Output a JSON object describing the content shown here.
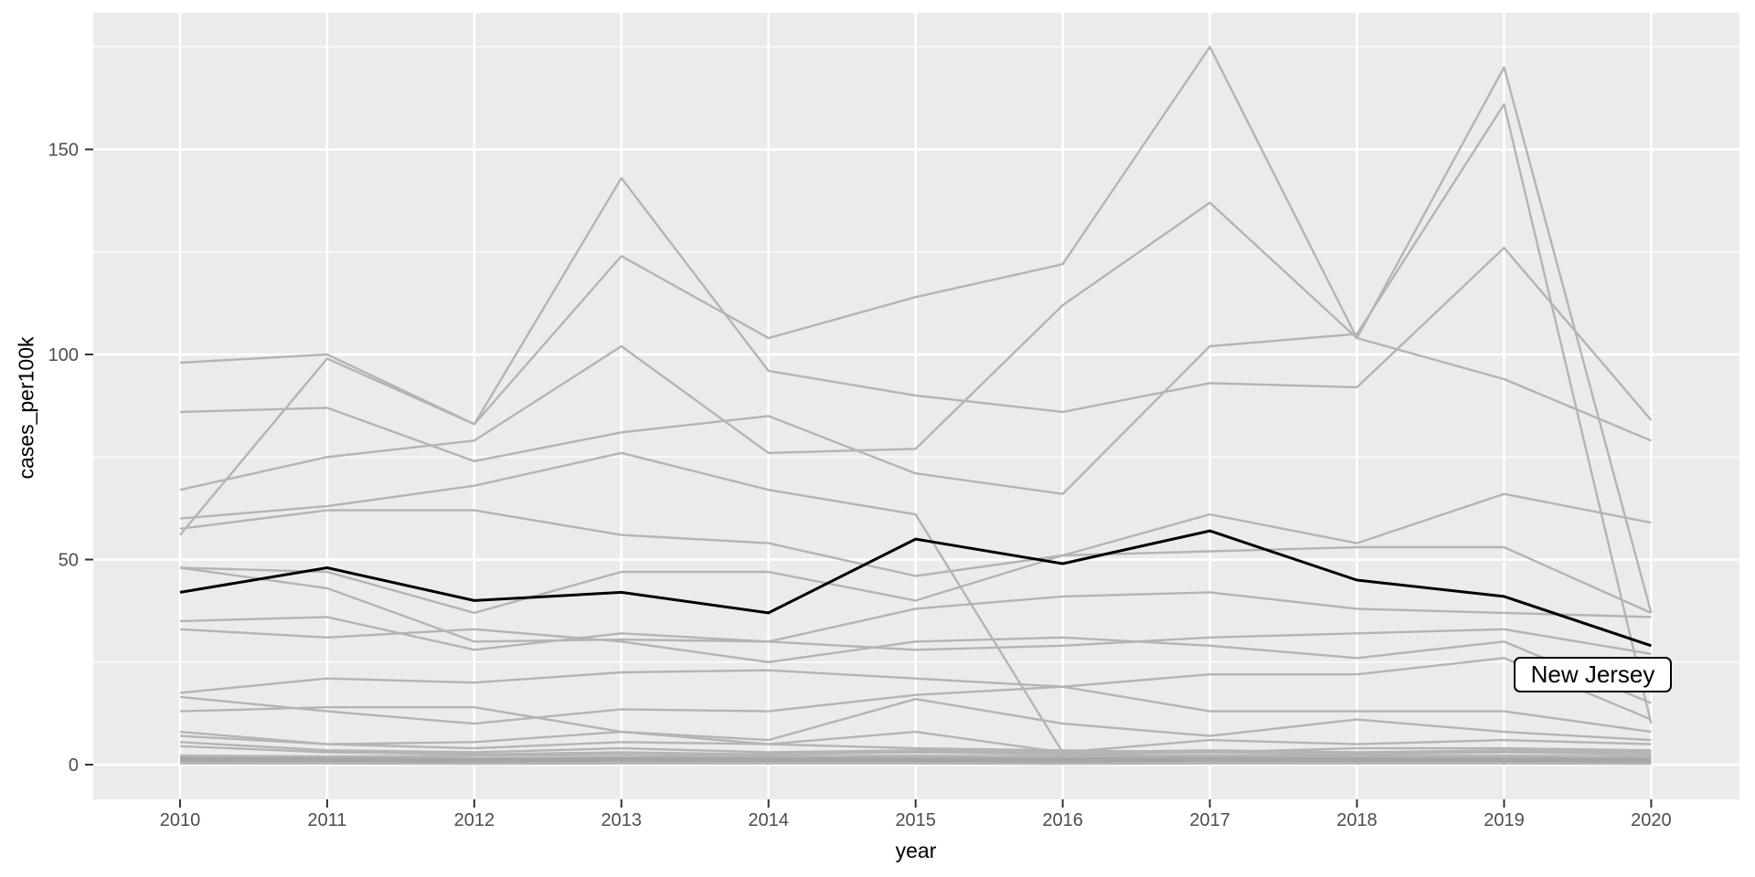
{
  "chart_data": {
    "type": "line",
    "title": "",
    "xlabel": "year",
    "ylabel": "cases_per100k",
    "x": [
      2010,
      2011,
      2012,
      2013,
      2014,
      2015,
      2016,
      2017,
      2018,
      2019,
      2020
    ],
    "x_tick_labels": [
      "2010",
      "2011",
      "2012",
      "2013",
      "2014",
      "2015",
      "2016",
      "2017",
      "2018",
      "2019",
      "2020"
    ],
    "y_tick_labels": [
      "0",
      "50",
      "100",
      "150"
    ],
    "y_tick_values": [
      0,
      50,
      100,
      150
    ],
    "y_minor_values": [
      25,
      75,
      125,
      175
    ],
    "xlim": [
      2009.41,
      2020.6
    ],
    "ylim": [
      -8.46,
      183.3
    ],
    "grid": "white major gridlines on gray panel, minor horizontal gridlines",
    "legend": "none",
    "highlight": {
      "name": "New Jersey",
      "label": "New Jersey",
      "color": "#000000",
      "values": [
        42,
        48,
        40,
        42,
        37,
        55,
        49,
        57,
        45,
        41,
        29
      ]
    },
    "series": [
      {
        "name": "gray-line-01",
        "values": [
          56,
          99,
          83,
          143,
          96,
          90,
          86,
          93,
          92,
          126,
          84
        ]
      },
      {
        "name": "gray-line-02",
        "values": [
          98,
          100,
          83,
          124,
          104,
          114,
          122,
          175,
          104,
          170,
          37
        ]
      },
      {
        "name": "gray-line-03",
        "values": [
          86,
          87,
          74,
          81,
          85,
          71,
          66,
          102,
          105,
          161,
          10
        ]
      },
      {
        "name": "gray-line-04",
        "values": [
          67,
          75,
          79,
          102,
          76,
          77,
          112,
          137,
          104,
          94,
          79
        ]
      },
      {
        "name": "gray-line-05",
        "values": [
          60,
          63,
          68,
          76,
          67,
          61,
          3,
          1.5,
          1.2,
          1.5,
          1.2
        ]
      },
      {
        "name": "gray-line-06",
        "values": [
          57.5,
          62,
          62,
          56,
          54,
          46,
          51,
          61,
          54,
          66,
          59
        ]
      },
      {
        "name": "gray-line-07",
        "values": [
          48,
          43,
          30,
          30.5,
          30,
          28,
          29,
          31,
          32,
          33,
          27
        ]
      },
      {
        "name": "gray-line-08",
        "values": [
          48,
          47,
          37,
          47,
          47,
          40,
          51,
          52,
          53,
          53,
          37
        ]
      },
      {
        "name": "gray-line-09",
        "values": [
          35,
          36,
          28,
          32,
          30,
          38,
          41,
          42,
          38,
          37,
          36
        ]
      },
      {
        "name": "gray-line-10",
        "values": [
          33,
          31,
          33,
          30,
          25,
          30,
          31,
          29,
          26,
          30,
          15
        ]
      },
      {
        "name": "gray-line-11",
        "values": [
          17.5,
          21,
          20,
          22.5,
          23,
          21,
          19,
          22,
          22,
          26,
          11
        ]
      },
      {
        "name": "gray-line-12",
        "values": [
          16.5,
          13,
          10,
          13.5,
          13,
          17,
          19,
          13,
          13,
          13,
          8
        ]
      },
      {
        "name": "gray-line-13",
        "values": [
          13,
          14,
          14,
          8,
          6,
          16,
          10,
          7,
          11,
          8,
          6
        ]
      },
      {
        "name": "gray-line-14",
        "values": [
          8,
          5,
          5.5,
          8,
          5,
          8,
          3,
          6,
          5,
          6,
          5
        ]
      },
      {
        "name": "gray-line-15",
        "values": [
          7,
          5,
          4,
          5.5,
          5,
          4,
          3.5,
          3,
          4,
          4,
          3.5
        ]
      },
      {
        "name": "gray-line-16",
        "values": [
          5.5,
          3.5,
          3,
          4,
          3,
          3.5,
          3,
          3.5,
          3,
          3.5,
          3
        ]
      },
      {
        "name": "gray-line-17",
        "values": [
          4.5,
          3,
          2.5,
          3,
          2.5,
          3,
          2.5,
          3,
          2.5,
          3,
          2.5
        ]
      },
      {
        "name": "gray-line-18",
        "values": [
          2.2,
          2,
          2.1,
          2.4,
          2,
          2.2,
          2,
          2.3,
          2.1,
          2.2,
          2
        ]
      },
      {
        "name": "gray-line-19",
        "values": [
          1.8,
          1.6,
          1.5,
          1.8,
          1.6,
          1.7,
          1.6,
          1.8,
          1.6,
          1.7,
          1.5
        ]
      },
      {
        "name": "gray-line-20",
        "values": [
          1.4,
          1.2,
          1.1,
          1.4,
          1.2,
          1.3,
          1.2,
          1.4,
          1.2,
          1.3,
          1.1
        ]
      },
      {
        "name": "gray-line-21",
        "values": [
          1,
          0.9,
          0.8,
          1,
          0.9,
          0.9,
          0.8,
          1,
          0.9,
          0.9,
          0.8
        ]
      },
      {
        "name": "gray-line-22",
        "values": [
          0.6,
          0.5,
          0.5,
          0.6,
          0.5,
          0.6,
          0.5,
          0.6,
          0.5,
          0.5,
          0.4
        ]
      },
      {
        "name": "gray-line-23",
        "values": [
          0.3,
          0.3,
          0.2,
          0.3,
          0.3,
          0.3,
          0.2,
          0.3,
          0.3,
          0.3,
          0.2
        ]
      },
      {
        "name": "dense-band",
        "values": [
          1.3,
          1.2,
          1.1,
          1.3,
          1.2,
          1.2,
          1.1,
          1.3,
          1.2,
          1.2,
          1.1
        ],
        "width": 5
      }
    ],
    "colors": {
      "panel_bg": "#EBEBEB",
      "grid": "#FFFFFF",
      "series_gray": "#B4B4B4",
      "dense_band": "#A6A6A6",
      "highlight": "#000000",
      "tick_text": "#4D4D4D",
      "axis_title": "#000000",
      "tick_mark": "#333333",
      "label_bg": "#FFFFFF",
      "label_border": "#000000"
    }
  }
}
